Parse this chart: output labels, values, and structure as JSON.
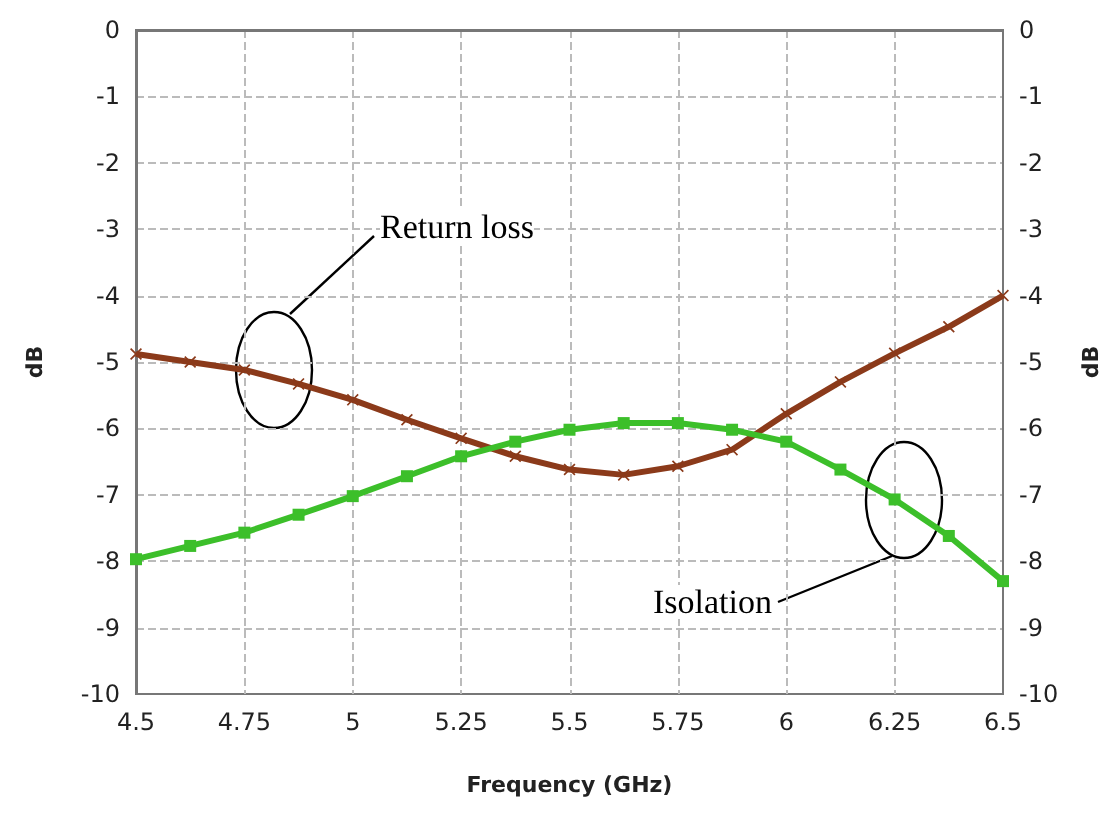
{
  "chart_data": {
    "type": "line",
    "xlabel": "Frequency (GHz)",
    "ylabel": "dB",
    "y2label": "dB",
    "xlim": [
      4.5,
      6.5
    ],
    "xticks": [
      4.5,
      4.75,
      5,
      5.25,
      5.5,
      5.75,
      6,
      6.25,
      6.5
    ],
    "ylim": [
      -10,
      0
    ],
    "yticks": [
      -10,
      -9,
      -8,
      -7,
      -6,
      -5,
      -4,
      -3,
      -2,
      -1,
      0
    ],
    "y2lim": [
      -10,
      0
    ],
    "y2ticks": [
      -10,
      -9,
      -8,
      -7,
      -6,
      -5,
      -4,
      -3,
      -2,
      -1,
      0
    ],
    "grid": true,
    "line_style": "solid",
    "x": [
      4.5,
      4.625,
      4.75,
      4.875,
      5,
      5.125,
      5.25,
      5.375,
      5.5,
      5.625,
      5.75,
      5.875,
      6,
      6.125,
      6.25,
      6.375,
      6.5
    ],
    "series": [
      {
        "color": "#8b3a1a",
        "marker": "cross",
        "values": [
          -4.88,
          -5.0,
          -5.12,
          -5.33,
          -5.57,
          -5.87,
          -6.15,
          -6.42,
          -6.62,
          -6.7,
          -6.57,
          -6.32,
          -5.78,
          -5.3,
          -4.87,
          -4.47,
          -4.0
        ]
      },
      {
        "color": "#3cbf2a",
        "marker": "square",
        "values": [
          -7.97,
          -7.77,
          -7.57,
          -7.3,
          -7.02,
          -6.72,
          -6.42,
          -6.2,
          -6.02,
          -5.92,
          -5.92,
          -6.02,
          -6.2,
          -6.62,
          -7.07,
          -7.62,
          -8.3
        ]
      }
    ],
    "annotations": [
      "Return loss",
      "Isolation"
    ]
  }
}
